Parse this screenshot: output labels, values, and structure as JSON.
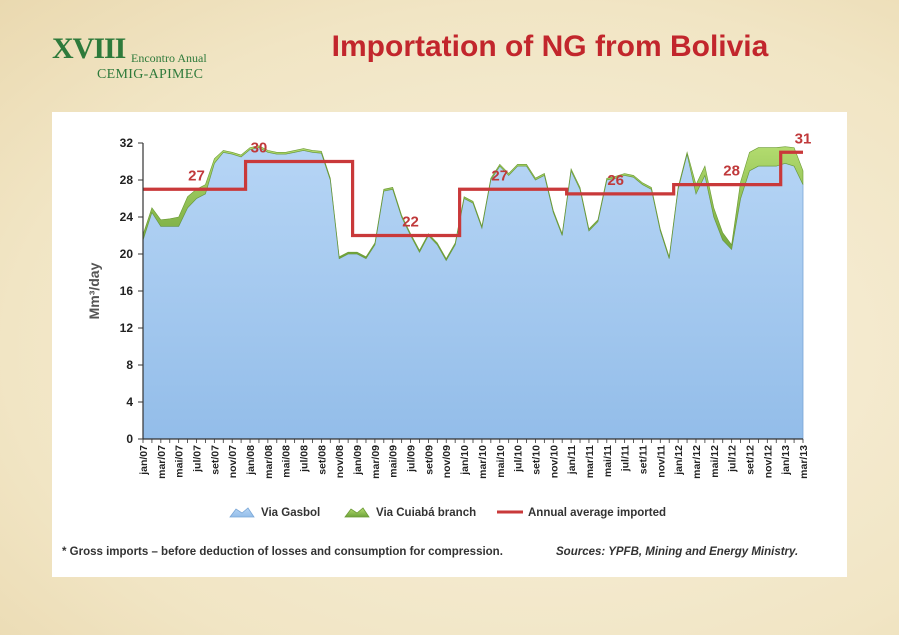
{
  "header": {
    "logo_roman": "XVIII",
    "logo_event": "Encontro Anual",
    "logo_org": "CEMIG-APIMEC",
    "title": "Importation of NG from Bolivia"
  },
  "footer": {
    "note": "* Gross imports – before deduction of losses and consumption for compression.",
    "source": "Sources: YPFB, Mining and Energy Ministry."
  },
  "colors": {
    "gasbol": "#93bde9",
    "cuiaba": "#8ec84a",
    "avg": "#c9393a",
    "title": "#c2262c",
    "logo": "#2e7a3b"
  },
  "chart_data": {
    "type": "area",
    "title": "",
    "ylabel": "Mm³/day",
    "ylim": [
      0,
      32
    ],
    "yticks": [
      0,
      4,
      8,
      12,
      16,
      20,
      24,
      28,
      32
    ],
    "x": [
      "jan/07",
      "fev/07",
      "mar/07",
      "abr/07",
      "mai/07",
      "jun/07",
      "jul/07",
      "ago/07",
      "set/07",
      "out/07",
      "nov/07",
      "dez/07",
      "jan/08",
      "fev/08",
      "mar/08",
      "abr/08",
      "mai/08",
      "jun/08",
      "jul/08",
      "ago/08",
      "set/08",
      "out/08",
      "nov/08",
      "dez/08",
      "jan/09",
      "fev/09",
      "mar/09",
      "abr/09",
      "mai/09",
      "jun/09",
      "jul/09",
      "ago/09",
      "set/09",
      "out/09",
      "nov/09",
      "dez/09",
      "jan/10",
      "fev/10",
      "mar/10",
      "abr/10",
      "mai/10",
      "jun/10",
      "jul/10",
      "ago/10",
      "set/10",
      "out/10",
      "nov/10",
      "dez/10",
      "jan/11",
      "fev/11",
      "mar/11",
      "abr/11",
      "mai/11",
      "jun/11",
      "jul/11",
      "ago/11",
      "set/11",
      "out/11",
      "nov/11",
      "dez/11",
      "jan/12",
      "fev/12",
      "mar/12",
      "abr/12",
      "mai/12",
      "jun/12",
      "jul/12",
      "ago/12",
      "set/12",
      "out/12",
      "nov/12",
      "dez/12",
      "jan/13",
      "fev/13",
      "mar/13"
    ],
    "xtick_labels": [
      "jan/07",
      "mar/07",
      "mai/07",
      "jul/07",
      "set/07",
      "nov/07",
      "jan/08",
      "mar/08",
      "mai/08",
      "jul/08",
      "set/08",
      "nov/08",
      "jan/09",
      "mar/09",
      "mai/09",
      "jul/09",
      "set/09",
      "nov/09",
      "jan/10",
      "mar/10",
      "mai/10",
      "jul/10",
      "set/10",
      "nov/10",
      "jan/11",
      "mar/11",
      "mai/11",
      "jul/11",
      "set/11",
      "nov/11",
      "jan/12",
      "mar/12",
      "mai/12",
      "jul/12",
      "set/12",
      "nov/12",
      "jan/13",
      "mar/13"
    ],
    "series": [
      {
        "name": "Via Gasbol",
        "type": "area",
        "values": [
          21.5,
          24.5,
          23.0,
          23.0,
          23.0,
          25.0,
          26.0,
          26.5,
          29.8,
          31.0,
          30.8,
          30.5,
          31.3,
          31.5,
          31.0,
          30.8,
          30.8,
          31.0,
          31.2,
          31.0,
          30.9,
          28.0,
          19.5,
          20.0,
          20.0,
          19.5,
          21.0,
          26.8,
          27.0,
          24.0,
          22.0,
          20.2,
          22.0,
          21.0,
          19.3,
          21.0,
          26.0,
          25.5,
          22.8,
          28.0,
          29.5,
          28.5,
          29.5,
          29.5,
          28.0,
          28.5,
          24.5,
          22.0,
          29.0,
          27.0,
          22.5,
          23.5,
          28.0,
          28.2,
          28.5,
          28.3,
          27.5,
          27.0,
          22.5,
          19.5,
          27.0,
          30.8,
          26.5,
          28.5,
          24.0,
          21.5,
          20.5,
          26.0,
          29.0,
          29.5,
          29.5,
          29.5,
          29.8,
          29.5,
          27.5
        ]
      },
      {
        "name": "Via Cuiabá branch",
        "type": "area",
        "values": [
          0.6,
          0.5,
          0.7,
          0.8,
          1.0,
          1.2,
          1.0,
          1.0,
          0.5,
          0.2,
          0.2,
          0.2,
          0.2,
          0.2,
          0.2,
          0.2,
          0.2,
          0.2,
          0.2,
          0.2,
          0.2,
          0.2,
          0.2,
          0.2,
          0.2,
          0.2,
          0.2,
          0.2,
          0.2,
          0.2,
          0.2,
          0.2,
          0.2,
          0.2,
          0.2,
          0.2,
          0.2,
          0.2,
          0.2,
          0.2,
          0.2,
          0.2,
          0.2,
          0.2,
          0.2,
          0.2,
          0.2,
          0.2,
          0.2,
          0.2,
          0.2,
          0.2,
          0.2,
          0.2,
          0.2,
          0.2,
          0.2,
          0.2,
          0.2,
          0.2,
          0.2,
          0.2,
          1.0,
          1.0,
          1.0,
          0.8,
          0.5,
          1.8,
          2.0,
          2.0,
          2.0,
          2.0,
          1.8,
          2.0,
          1.5
        ]
      },
      {
        "name": "Annual average imported",
        "type": "step-line",
        "segments": [
          {
            "from": "jan/07",
            "to": "dez/07",
            "value": 27
          },
          {
            "from": "jan/08",
            "to": "dez/08",
            "value": 30
          },
          {
            "from": "jan/09",
            "to": "dez/09",
            "value": 22
          },
          {
            "from": "jan/10",
            "to": "dez/10",
            "value": 27
          },
          {
            "from": "jan/11",
            "to": "dez/11",
            "value": 26.5
          },
          {
            "from": "jan/12",
            "to": "dez/12",
            "value": 27.5
          },
          {
            "from": "jan/13",
            "to": "mar/13",
            "value": 31
          }
        ]
      }
    ],
    "annotations": [
      {
        "text": "27",
        "x": "jul/07",
        "y": 27
      },
      {
        "text": "30",
        "x": "fev/08",
        "y": 30
      },
      {
        "text": "22",
        "x": "jul/09",
        "y": 22
      },
      {
        "text": "27",
        "x": "mai/10",
        "y": 27
      },
      {
        "text": "26",
        "x": "jun/11",
        "y": 26.5
      },
      {
        "text": "28",
        "x": "jul/12",
        "y": 27.5
      },
      {
        "text": "31",
        "x": "mar/13",
        "y": 31
      }
    ],
    "legend": {
      "position": "bottom"
    },
    "grid": false
  }
}
